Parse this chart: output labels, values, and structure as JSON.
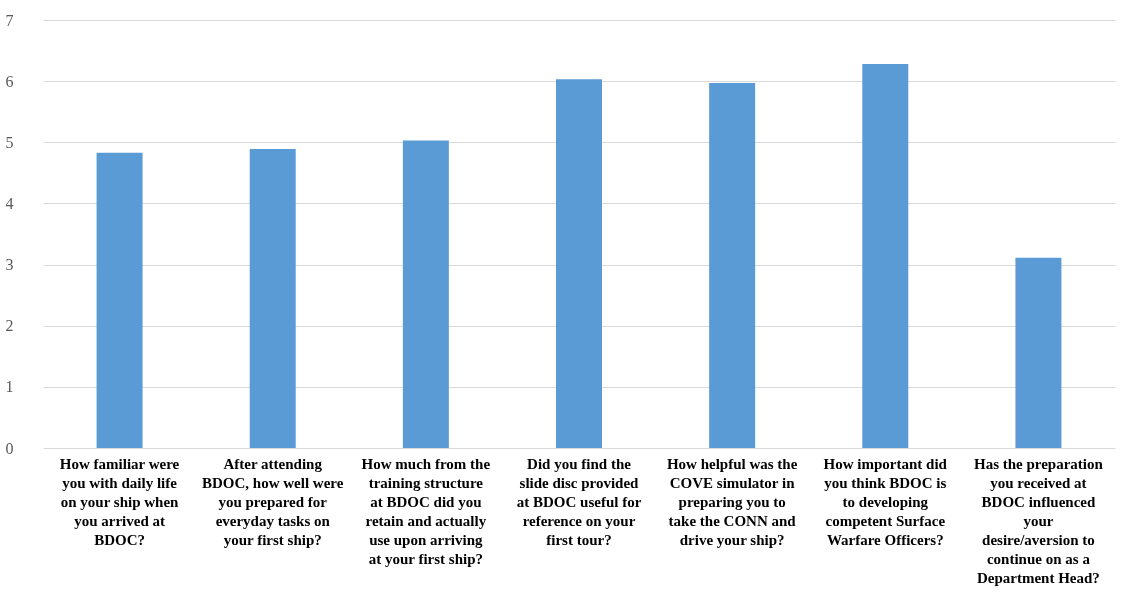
{
  "chart_data": {
    "type": "bar",
    "categories": [
      "How familiar were you with daily life on your ship when you arrived at BDOC?",
      "After attending BDOC, how well were you prepared for everyday tasks on your first ship?",
      "How much from the training structure at BDOC did you retain and actually use upon arriving at your first ship?",
      "Did you find the slide disc provided at BDOC useful for reference on your first tour?",
      "How helpful was the COVE simulator in preparing you to take the CONN and drive your ship?",
      "How important did you think BDOC is to developing competent Surface Warfare Officers?",
      "Has the preparation you received at BDOC influenced your desire/aversion to continue on as a Department Head?"
    ],
    "values": [
      4.83,
      4.89,
      5.03,
      6.03,
      5.97,
      6.28,
      3.11
    ],
    "color": "#5b9bd5",
    "ylim": [
      0,
      7
    ],
    "yticks": [
      0,
      1,
      2,
      3,
      4,
      5,
      6,
      7
    ],
    "grid": "y"
  }
}
